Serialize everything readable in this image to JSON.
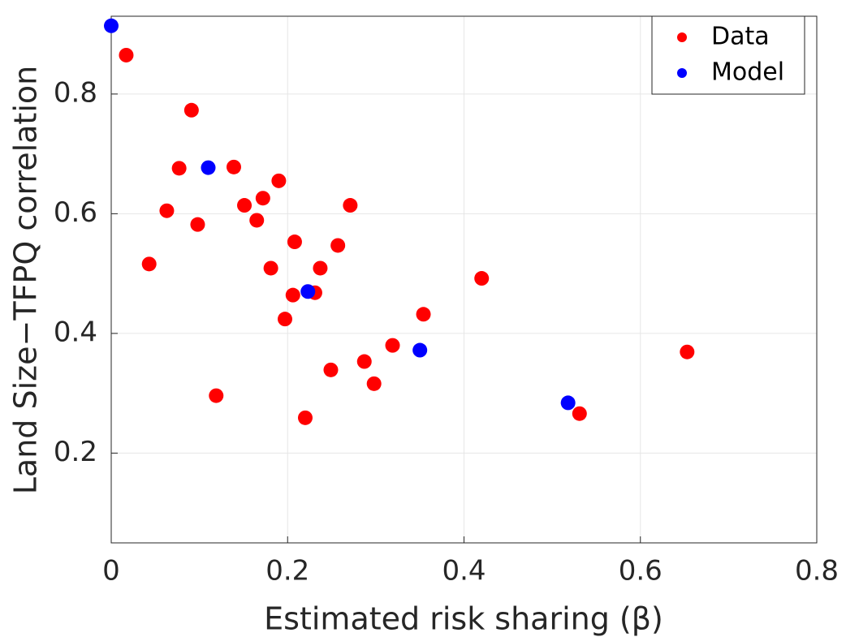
{
  "chart_data": {
    "type": "scatter",
    "xlabel": "Estimated risk sharing (β)",
    "ylabel": "Land Size−TFPQ correlation",
    "xlim": [
      0,
      0.8
    ],
    "xticks": [
      0,
      0.2,
      0.4,
      0.6,
      0.8
    ],
    "ylim": [
      0.05,
      0.93
    ],
    "yticks": [
      0.2,
      0.4,
      0.6,
      0.8
    ],
    "grid": true,
    "legend": "upper right",
    "series": [
      {
        "name": "Data",
        "color": "#ff0000",
        "x": [
          0.017,
          0.091,
          0.077,
          0.139,
          0.063,
          0.098,
          0.151,
          0.172,
          0.19,
          0.165,
          0.271,
          0.043,
          0.181,
          0.208,
          0.257,
          0.237,
          0.206,
          0.231,
          0.197,
          0.42,
          0.354,
          0.319,
          0.287,
          0.249,
          0.298,
          0.119,
          0.22,
          0.531,
          0.653
        ],
        "values": [
          0.865,
          0.773,
          0.676,
          0.678,
          0.605,
          0.582,
          0.614,
          0.626,
          0.655,
          0.589,
          0.614,
          0.516,
          0.509,
          0.553,
          0.547,
          0.509,
          0.464,
          0.468,
          0.424,
          0.492,
          0.432,
          0.38,
          0.353,
          0.339,
          0.316,
          0.296,
          0.259,
          0.266,
          0.369
        ]
      },
      {
        "name": "Model",
        "color": "#0000ff",
        "x": [
          0,
          0.11,
          0.223,
          0.35,
          0.518
        ],
        "values": [
          0.914,
          0.677,
          0.47,
          0.372,
          0.284
        ]
      }
    ]
  }
}
